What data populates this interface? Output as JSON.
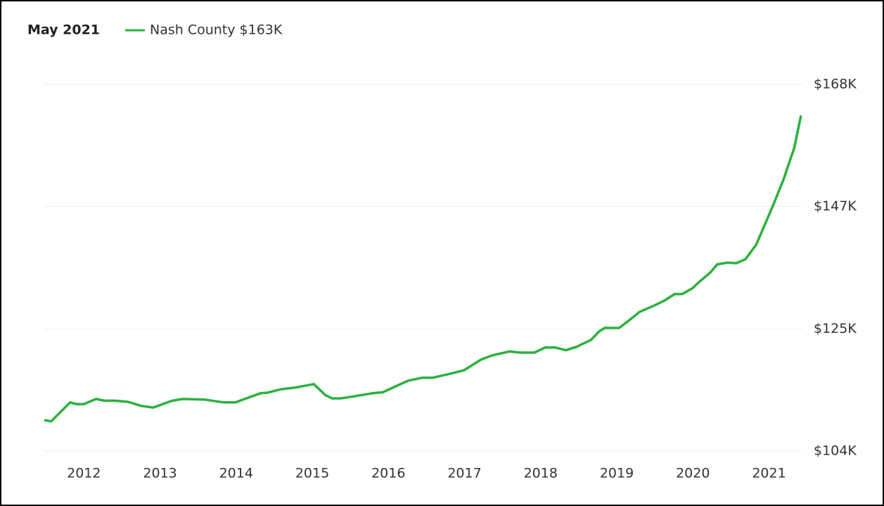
{
  "chart_data": {
    "type": "line",
    "title": "May 2021",
    "xlim": [
      2011.48,
      2021.42
    ],
    "xticks": [
      2012,
      2013,
      2014,
      2015,
      2016,
      2017,
      2018,
      2019,
      2020,
      2021
    ],
    "ylim": [
      104,
      168
    ],
    "yticks": [
      {
        "value": 104,
        "label": "$104K"
      },
      {
        "value": 125.3,
        "label": "$125K"
      },
      {
        "value": 146.7,
        "label": "$147K"
      },
      {
        "value": 168,
        "label": "$168K"
      }
    ],
    "grid": true,
    "x": [
      2011.48,
      2011.57,
      2011.82,
      2011.9,
      2012.0,
      2012.16,
      2012.27,
      2012.41,
      2012.58,
      2012.75,
      2012.91,
      2013.16,
      2013.3,
      2013.58,
      2013.84,
      2013.99,
      2014.13,
      2014.32,
      2014.41,
      2014.59,
      2014.78,
      2015.02,
      2015.17,
      2015.26,
      2015.37,
      2015.52,
      2015.79,
      2015.93,
      2016.26,
      2016.44,
      2016.58,
      2016.81,
      2016.99,
      2017.22,
      2017.36,
      2017.59,
      2017.73,
      2017.92,
      2018.06,
      2018.19,
      2018.33,
      2018.47,
      2018.66,
      2018.77,
      2018.84,
      2019.03,
      2019.16,
      2019.3,
      2019.49,
      2019.63,
      2019.76,
      2019.86,
      2019.99,
      2020.09,
      2020.23,
      2020.32,
      2020.46,
      2020.57,
      2020.69,
      2020.83,
      2020.96,
      2021.06,
      2021.19,
      2021.33,
      2021.42
    ],
    "series": [
      {
        "name": "Nash County $163K",
        "color": "#2bb13f",
        "values": [
          109.4,
          109.2,
          112.5,
          112.2,
          112.2,
          113.1,
          112.8,
          112.8,
          112.6,
          111.9,
          111.6,
          112.8,
          113.1,
          113.0,
          112.5,
          112.5,
          113.2,
          114.1,
          114.2,
          114.8,
          115.1,
          115.7,
          113.8,
          113.2,
          113.2,
          113.5,
          114.1,
          114.3,
          116.3,
          116.8,
          116.8,
          117.5,
          118.1,
          120.0,
          120.7,
          121.4,
          121.2,
          121.2,
          122.1,
          122.1,
          121.6,
          122.2,
          123.4,
          124.9,
          125.5,
          125.5,
          126.8,
          128.3,
          129.4,
          130.3,
          131.4,
          131.4,
          132.4,
          133.6,
          135.2,
          136.6,
          136.9,
          136.8,
          137.5,
          140.0,
          144.0,
          147.1,
          151.4,
          156.9,
          162.6
        ]
      }
    ]
  }
}
